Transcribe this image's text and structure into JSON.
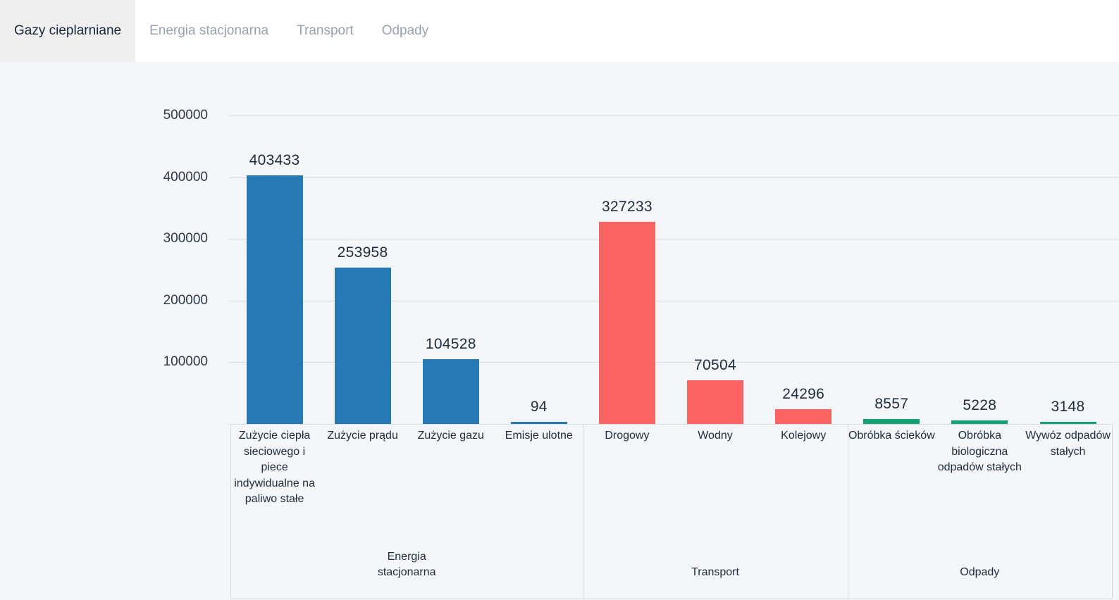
{
  "tabs": [
    {
      "label": "Gazy cieplarniane",
      "active": true
    },
    {
      "label": "Energia stacjonarna",
      "active": false
    },
    {
      "label": "Transport",
      "active": false
    },
    {
      "label": "Odpady",
      "active": false
    }
  ],
  "chart_data": {
    "type": "bar",
    "title": "",
    "xlabel": "",
    "ylabel": "",
    "ylim": [
      0,
      500000
    ],
    "yticks": [
      100000,
      200000,
      300000,
      400000,
      500000
    ],
    "grid": true,
    "legend": false,
    "value_labels_shown": true,
    "groups": [
      {
        "label": "Energia stacjonarna",
        "color": "#2878b4",
        "bars": [
          {
            "label": "Zużycie ciepła sieciowego i piece indywidualne na paliwo stałe",
            "value": 403433
          },
          {
            "label": "Zużycie prądu",
            "value": 253958
          },
          {
            "label": "Zużycie gazu",
            "value": 104528
          },
          {
            "label": "Emisje ulotne",
            "value": 94
          }
        ]
      },
      {
        "label": "Transport",
        "color": "#fc6464",
        "bars": [
          {
            "label": "Drogowy",
            "value": 327233
          },
          {
            "label": "Wodny",
            "value": 70504
          },
          {
            "label": "Kolejowy",
            "value": 24296
          }
        ]
      },
      {
        "label": "Odpady",
        "color": "#16a173",
        "bars": [
          {
            "label": "Obróbka ścieków",
            "value": 8557
          },
          {
            "label": "Obróbka biologiczna odpadów stałych",
            "value": 5228
          },
          {
            "label": "Wywóz odpadów stałych",
            "value": 3148
          }
        ]
      }
    ]
  },
  "colors": {
    "chart_background": "#f4f6fa",
    "tab_active_background": "#efeff0",
    "tab_active_text": "#16273a",
    "tab_inactive_text": "#98a2ae",
    "gridline": "#d6dbe1",
    "text_dark": "#1d2c3c",
    "axis_text": "#2c3a48",
    "bar_blue": "#2878b4",
    "bar_red": "#fc6464",
    "bar_green": "#16a173"
  }
}
